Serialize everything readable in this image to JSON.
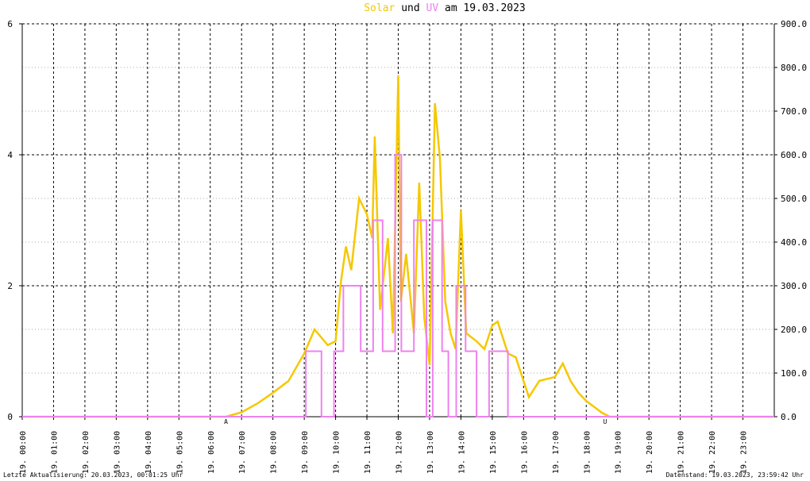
{
  "chart_data": {
    "type": "line",
    "title_parts": [
      {
        "text": "Solar",
        "color": "#f5c800"
      },
      {
        "text": "und",
        "color": "#000000"
      },
      {
        "text": "UV",
        "color": "#ee82ee"
      },
      {
        "text": "am 19.03.2023",
        "color": "#000000"
      }
    ],
    "xlim": [
      0,
      24
    ],
    "xticks": [
      {
        "value": 0,
        "label": "19. 00:00"
      },
      {
        "value": 1,
        "label": "19. 01:00"
      },
      {
        "value": 2,
        "label": "19. 02:00"
      },
      {
        "value": 3,
        "label": "19. 03:00"
      },
      {
        "value": 4,
        "label": "19. 04:00"
      },
      {
        "value": 5,
        "label": "19. 05:00"
      },
      {
        "value": 6,
        "label": "19. 06:00"
      },
      {
        "value": 7,
        "label": "19. 07:00"
      },
      {
        "value": 8,
        "label": "19. 08:00"
      },
      {
        "value": 9,
        "label": "19. 09:00"
      },
      {
        "value": 10,
        "label": "19. 10:00"
      },
      {
        "value": 11,
        "label": "19. 11:00"
      },
      {
        "value": 12,
        "label": "19. 12:00"
      },
      {
        "value": 13,
        "label": "19. 13:00"
      },
      {
        "value": 14,
        "label": "19. 14:00"
      },
      {
        "value": 15,
        "label": "19. 15:00"
      },
      {
        "value": 16,
        "label": "19. 16:00"
      },
      {
        "value": 17,
        "label": "19. 17:00"
      },
      {
        "value": 18,
        "label": "19. 18:00"
      },
      {
        "value": 19,
        "label": "19. 19:00"
      },
      {
        "value": 20,
        "label": "19. 20:00"
      },
      {
        "value": 21,
        "label": "19. 21:00"
      },
      {
        "value": 22,
        "label": "19. 22:00"
      },
      {
        "value": 23,
        "label": "19. 23:00"
      }
    ],
    "ylim": [
      0,
      6
    ],
    "yticks": [
      0,
      2,
      4,
      6
    ],
    "y2lim": [
      0,
      900
    ],
    "y2ticks": [
      {
        "value": 0,
        "label": "0.0"
      },
      {
        "value": 100,
        "label": "100.0"
      },
      {
        "value": 200,
        "label": "200.0"
      },
      {
        "value": 300,
        "label": "300.0"
      },
      {
        "value": 400,
        "label": "400.0"
      },
      {
        "value": 500,
        "label": "500.0"
      },
      {
        "value": 600,
        "label": "600.0"
      },
      {
        "value": 700,
        "label": "700.0"
      },
      {
        "value": 800,
        "label": "800.0"
      },
      {
        "value": 900,
        "label": "900.0"
      }
    ],
    "series": [
      {
        "name": "Solar",
        "color": "#f5c800",
        "axis": "y2",
        "x": [
          0,
          6.5,
          7,
          7.5,
          8,
          8.5,
          9,
          9.33,
          9.75,
          10,
          10.17,
          10.33,
          10.5,
          10.75,
          11,
          11.17,
          11.25,
          11.42,
          11.67,
          11.83,
          12,
          12.08,
          12.25,
          12.5,
          12.67,
          12.83,
          13,
          13.17,
          13.33,
          13.5,
          13.67,
          13.83,
          14,
          14.17,
          14.5,
          14.75,
          15,
          15.17,
          15.5,
          15.75,
          16,
          16.17,
          16.5,
          17,
          17.25,
          17.5,
          17.75,
          18,
          18.5,
          18.75,
          24
        ],
        "values": [
          0,
          0,
          10,
          30,
          55,
          82,
          145,
          200,
          164,
          173,
          309,
          390,
          336,
          500,
          464,
          409,
          642,
          245,
          409,
          191,
          782,
          264,
          373,
          191,
          536,
          227,
          118,
          718,
          591,
          264,
          191,
          155,
          473,
          191,
          173,
          155,
          209,
          218,
          145,
          136,
          82,
          45,
          82,
          91,
          122,
          82,
          55,
          36,
          9,
          0,
          0
        ]
      },
      {
        "name": "UV",
        "color": "#ee82ee",
        "axis": "y",
        "x": [
          0,
          9.05,
          9.05,
          9.55,
          9.55,
          9.95,
          9.95,
          10.25,
          10.25,
          10.8,
          10.8,
          11.2,
          11.2,
          11.5,
          11.5,
          11.9,
          11.9,
          12.1,
          12.1,
          12.5,
          12.5,
          12.9,
          12.9,
          13.1,
          13.1,
          13.4,
          13.4,
          13.6,
          13.6,
          13.85,
          13.85,
          14.15,
          14.15,
          14.5,
          14.5,
          14.9,
          14.9,
          15.5,
          15.5,
          24
        ],
        "values": [
          0,
          0,
          1,
          1,
          0,
          0,
          1,
          1,
          2,
          2,
          1,
          1,
          3,
          3,
          1,
          1,
          4,
          4,
          1,
          1,
          3,
          3,
          0,
          0,
          3,
          3,
          1,
          1,
          0,
          0,
          2,
          2,
          1,
          1,
          0,
          0,
          1,
          1,
          0,
          0
        ]
      }
    ],
    "annotations": [
      {
        "text": "A",
        "x": 6.5
      },
      {
        "text": "U",
        "x": 18.6
      }
    ],
    "footer_left": "Letzte Aktualisierung: 20.03.2023, 00:01:25 Uhr",
    "footer_right": "Datenstand: 19.03.2023, 23:59:42 Uhr",
    "grid": true
  }
}
